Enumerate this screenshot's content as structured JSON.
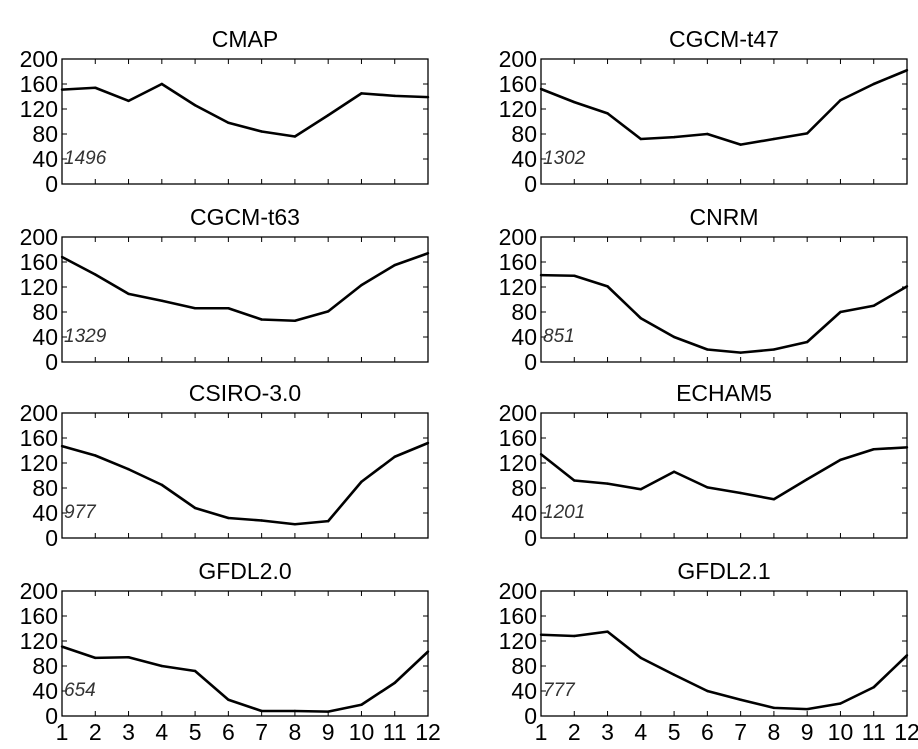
{
  "chart_data": [
    {
      "type": "line",
      "title": "CMAP",
      "annotation": "1496",
      "x": [
        1,
        2,
        3,
        4,
        5,
        6,
        7,
        8,
        9,
        10,
        11,
        12
      ],
      "series": [
        {
          "values": [
            151,
            154,
            133,
            160,
            126,
            98,
            84,
            76,
            110,
            145,
            141,
            139
          ]
        }
      ],
      "yticks": [
        0,
        40,
        80,
        120,
        160,
        200
      ],
      "ylim": [
        0,
        200
      ],
      "xlim": [
        1,
        12
      ],
      "grid": false
    },
    {
      "type": "line",
      "title": "CGCM-t47",
      "annotation": "1302",
      "x": [
        1,
        2,
        3,
        4,
        5,
        6,
        7,
        8,
        9,
        10,
        11,
        12
      ],
      "series": [
        {
          "values": [
            152,
            131,
            113,
            72,
            75,
            80,
            63,
            72,
            81,
            134,
            160,
            182
          ]
        }
      ],
      "yticks": [
        0,
        40,
        80,
        120,
        160,
        200
      ],
      "ylim": [
        0,
        200
      ],
      "xlim": [
        1,
        12
      ],
      "grid": false
    },
    {
      "type": "line",
      "title": "CGCM-t63",
      "annotation": "1329",
      "x": [
        1,
        2,
        3,
        4,
        5,
        6,
        7,
        8,
        9,
        10,
        11,
        12
      ],
      "series": [
        {
          "values": [
            168,
            140,
            109,
            98,
            86,
            86,
            68,
            66,
            81,
            123,
            155,
            174
          ]
        }
      ],
      "yticks": [
        0,
        40,
        80,
        120,
        160,
        200
      ],
      "ylim": [
        0,
        200
      ],
      "xlim": [
        1,
        12
      ],
      "grid": false
    },
    {
      "type": "line",
      "title": "CNRM",
      "annotation": "851",
      "x": [
        1,
        2,
        3,
        4,
        5,
        6,
        7,
        8,
        9,
        10,
        11,
        12
      ],
      "series": [
        {
          "values": [
            139,
            138,
            121,
            70,
            40,
            20,
            15,
            20,
            32,
            80,
            90,
            121
          ]
        }
      ],
      "yticks": [
        0,
        40,
        80,
        120,
        160,
        200
      ],
      "ylim": [
        0,
        200
      ],
      "xlim": [
        1,
        12
      ],
      "grid": false
    },
    {
      "type": "line",
      "title": "CSIRO-3.0",
      "annotation": "977",
      "x": [
        1,
        2,
        3,
        4,
        5,
        6,
        7,
        8,
        9,
        10,
        11,
        12
      ],
      "series": [
        {
          "values": [
            147,
            132,
            110,
            85,
            48,
            32,
            28,
            22,
            27,
            90,
            130,
            152
          ]
        }
      ],
      "yticks": [
        0,
        40,
        80,
        120,
        160,
        200
      ],
      "ylim": [
        0,
        200
      ],
      "xlim": [
        1,
        12
      ],
      "grid": false
    },
    {
      "type": "line",
      "title": "ECHAM5",
      "annotation": "1201",
      "x": [
        1,
        2,
        3,
        4,
        5,
        6,
        7,
        8,
        9,
        10,
        11,
        12
      ],
      "series": [
        {
          "values": [
            134,
            92,
            87,
            78,
            106,
            81,
            72,
            62,
            94,
            125,
            142,
            145
          ]
        }
      ],
      "yticks": [
        0,
        40,
        80,
        120,
        160,
        200
      ],
      "ylim": [
        0,
        200
      ],
      "xlim": [
        1,
        12
      ],
      "grid": false
    },
    {
      "type": "line",
      "title": "GFDL2.0",
      "annotation": "654",
      "x": [
        1,
        2,
        3,
        4,
        5,
        6,
        7,
        8,
        9,
        10,
        11,
        12
      ],
      "series": [
        {
          "values": [
            111,
            93,
            94,
            80,
            72,
            26,
            8,
            8,
            7,
            18,
            53,
            103
          ]
        }
      ],
      "yticks": [
        0,
        40,
        80,
        120,
        160,
        200
      ],
      "ylim": [
        0,
        200
      ],
      "xlim": [
        1,
        12
      ],
      "grid": false
    },
    {
      "type": "line",
      "title": "GFDL2.1",
      "annotation": "777",
      "x": [
        1,
        2,
        3,
        4,
        5,
        6,
        7,
        8,
        9,
        10,
        11,
        12
      ],
      "series": [
        {
          "values": [
            130,
            128,
            135,
            93,
            66,
            40,
            26,
            13,
            11,
            20,
            46,
            97
          ]
        }
      ],
      "yticks": [
        0,
        40,
        80,
        120,
        160,
        200
      ],
      "ylim": [
        0,
        200
      ],
      "xlim": [
        1,
        12
      ],
      "grid": false
    }
  ],
  "x_tick_labels": [
    "1",
    "2",
    "3",
    "4",
    "5",
    "6",
    "7",
    "8",
    "9",
    "10",
    "11",
    "12"
  ],
  "colors": {
    "line": "#000000",
    "frame": "#000000",
    "annotation": "#333333",
    "background": "#ffffff"
  }
}
